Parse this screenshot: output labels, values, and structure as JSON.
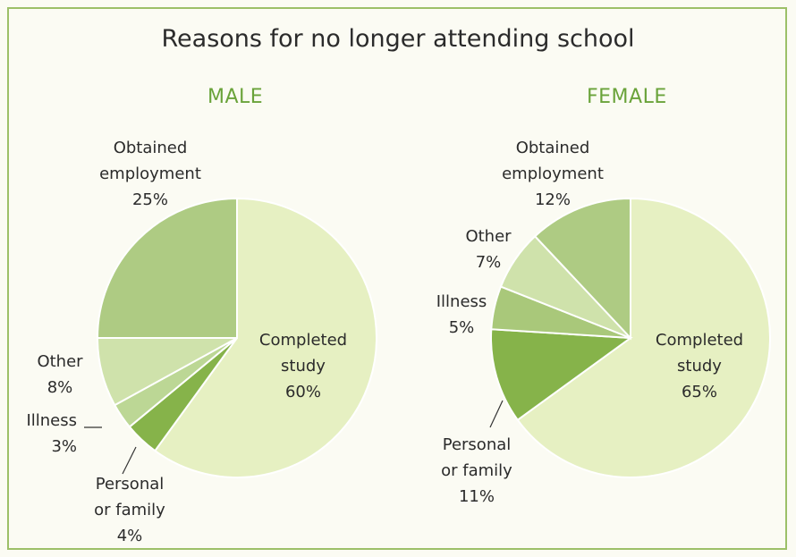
{
  "title": "Reasons for no longer attending school",
  "chart_data": [
    {
      "type": "pie",
      "title": "MALE",
      "categories": [
        "Completed study",
        "Personal or family",
        "Illness",
        "Other",
        "Obtained employment"
      ],
      "values": [
        60,
        4,
        3,
        8,
        25
      ],
      "unit": "%",
      "colors": [
        "#e6f0c2",
        "#86b34a",
        "#bcd795",
        "#cfe2ab",
        "#aecb83"
      ],
      "labels": [
        {
          "lines": [
            "Completed",
            "study",
            "60%"
          ]
        },
        {
          "lines": [
            "Personal",
            "or family",
            "4%"
          ]
        },
        {
          "lines": [
            "Illness",
            "3%"
          ]
        },
        {
          "lines": [
            "Other",
            "8%"
          ]
        },
        {
          "lines": [
            "Obtained",
            "employment",
            "25%"
          ]
        }
      ]
    },
    {
      "type": "pie",
      "title": "FEMALE",
      "categories": [
        "Completed study",
        "Personal or family",
        "Illness",
        "Other",
        "Obtained employment"
      ],
      "values": [
        65,
        11,
        5,
        7,
        12
      ],
      "unit": "%",
      "colors": [
        "#e6f0c2",
        "#86b34a",
        "#a9c87a",
        "#cfe2ab",
        "#aecb83"
      ],
      "labels": [
        {
          "lines": [
            "Completed",
            "study",
            "65%"
          ]
        },
        {
          "lines": [
            "Personal",
            "or family",
            "11%"
          ]
        },
        {
          "lines": [
            "Illness",
            "5%"
          ]
        },
        {
          "lines": [
            "Other",
            "7%"
          ]
        },
        {
          "lines": [
            "Obtained",
            "employment",
            "12%"
          ]
        }
      ]
    }
  ]
}
